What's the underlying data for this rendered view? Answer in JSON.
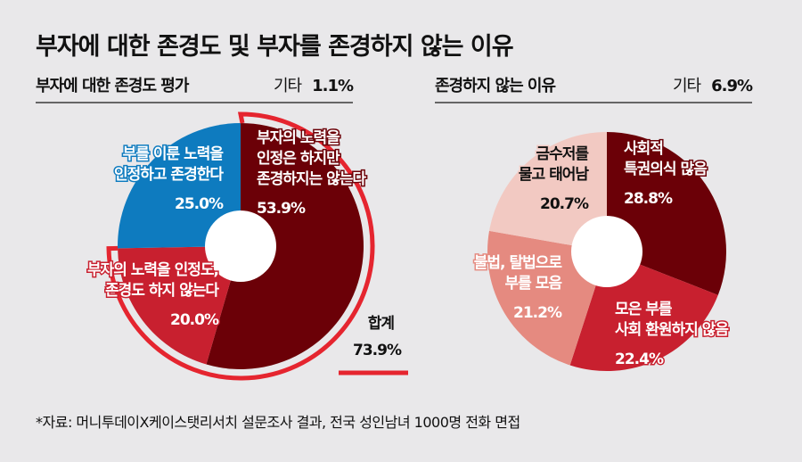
{
  "title": "부자에 대한 존경도 및 부자를 존경하지 않는 이유",
  "chart_data": [
    {
      "type": "pie",
      "title": "부자에 대한 존경도 평가",
      "other_label": "기타",
      "other_value": "1.1%",
      "slices": [
        {
          "label": "부자의 노력을\n인정은 하지만\n존경하지는 않는다",
          "value": 53.9,
          "display": "53.9%",
          "color": "#6b0007"
        },
        {
          "label": "부자의 노력을 인정도,\n존경도 하지 않는다",
          "value": 20.0,
          "display": "20.0%",
          "color": "#c8202f"
        },
        {
          "label": "부를 이룬 노력을\n인정하고 존경한다",
          "value": 25.0,
          "display": "25.0%",
          "color": "#0e7bbf"
        }
      ],
      "total_annotation": {
        "label": "합계",
        "value": "73.9%",
        "color": "#e5252f"
      }
    },
    {
      "type": "pie",
      "title": "존경하지 않는 이유",
      "other_label": "기타",
      "other_value": "6.9%",
      "slices": [
        {
          "label": "사회적\n특권의식 많음",
          "value": 28.8,
          "display": "28.8%",
          "color": "#6b0007"
        },
        {
          "label": "모은 부를\n사회 환원하지 않음",
          "value": 22.4,
          "display": "22.4%",
          "color": "#c8202f"
        },
        {
          "label": "불법, 탈법으로\n부를 모음",
          "value": 21.2,
          "display": "21.2%",
          "color": "#e58a80"
        },
        {
          "label": "금수저를\n물고 태어남",
          "value": 20.7,
          "display": "20.7%",
          "color": "#f2c9c2"
        }
      ]
    }
  ],
  "footer": "*자료: 머니투데이X케이스탯리서치 설문조사 결과, 전국 성인남녀 1000명 전화 면접"
}
